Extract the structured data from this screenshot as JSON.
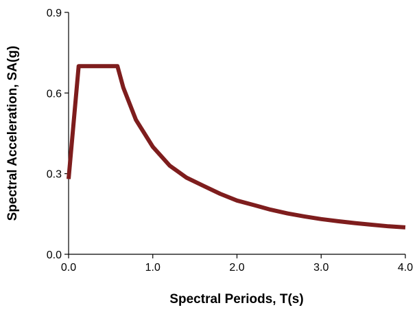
{
  "chart_data": {
    "type": "line",
    "title": "",
    "xlabel": "Spectral Periods, T(s)",
    "ylabel": "Spectral Acceleration, SA(g)",
    "xlim": [
      0,
      4
    ],
    "ylim": [
      0,
      0.9
    ],
    "xticks": [
      "0.0",
      "1.0",
      "2.0",
      "3.0",
      "4.0"
    ],
    "yticks": [
      "0.0",
      "0.3",
      "0.6",
      "0.9"
    ],
    "grid": false,
    "legend": "none",
    "series": [
      {
        "color": "#7e1d1d",
        "x": [
          0.0,
          0.12,
          0.58,
          0.65,
          0.8,
          1.0,
          1.2,
          1.4,
          1.6,
          1.8,
          2.0,
          2.2,
          2.4,
          2.6,
          2.8,
          3.0,
          3.2,
          3.4,
          3.6,
          3.8,
          4.0
        ],
        "y": [
          0.28,
          0.7,
          0.7,
          0.62,
          0.5,
          0.4,
          0.33,
          0.285,
          0.255,
          0.225,
          0.2,
          0.183,
          0.166,
          0.152,
          0.141,
          0.131,
          0.123,
          0.116,
          0.11,
          0.104,
          0.1
        ]
      }
    ]
  }
}
